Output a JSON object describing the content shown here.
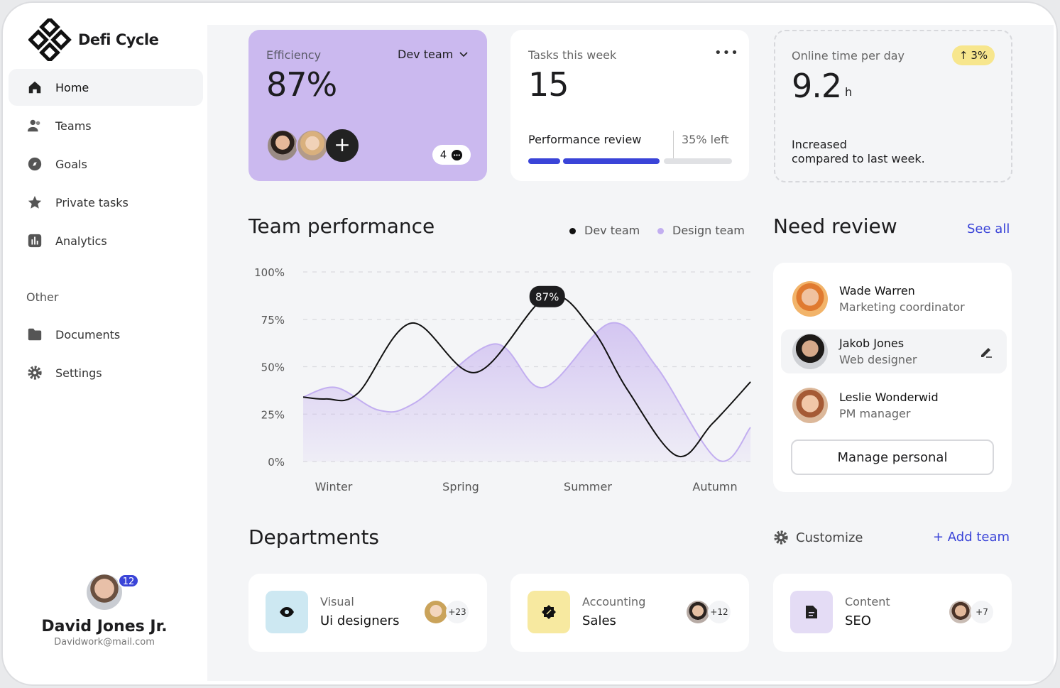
{
  "app": {
    "name": "Defi Cycle"
  },
  "sidebar": {
    "items": [
      {
        "label": "Home",
        "icon": "home-icon",
        "active": true
      },
      {
        "label": "Teams",
        "icon": "users-icon"
      },
      {
        "label": "Goals",
        "icon": "compass-icon"
      },
      {
        "label": "Private tasks",
        "icon": "star-icon"
      },
      {
        "label": "Analytics",
        "icon": "bar-chart-icon"
      }
    ],
    "other_label": "Other",
    "other_items": [
      {
        "label": "Documents",
        "icon": "folder-icon"
      },
      {
        "label": "Settings",
        "icon": "gear-icon"
      }
    ],
    "user": {
      "name": "David Jones Jr.",
      "email": "Davidwork@mail.com",
      "notifications": "12"
    }
  },
  "efficiency": {
    "label": "Efficiency",
    "value": "87%",
    "team": "Dev team",
    "comments": "4",
    "accent": "#cbb9ef"
  },
  "tasks": {
    "label": "Tasks this week",
    "value": "15",
    "progress_label": "Performance review",
    "left": "35% left",
    "progress": 65,
    "bar_color": "#3a44d8"
  },
  "online": {
    "label": "Online time per day",
    "value": "9.2",
    "unit": "h",
    "change": "3%",
    "note_line1": "Increased",
    "note_line2": "compared to last week."
  },
  "performance": {
    "title": "Team performance",
    "legend": [
      {
        "name": "Dev team",
        "color": "#111111"
      },
      {
        "name": "Design team",
        "color": "#c2aef0"
      }
    ]
  },
  "chart_data": {
    "type": "line",
    "categories": [
      "Winter",
      "Spring",
      "Summer",
      "Autumn"
    ],
    "y_ticks": [
      "100%",
      "75%",
      "50%",
      "25%",
      "0%"
    ],
    "ylim": [
      0,
      100
    ],
    "grid": true,
    "legend": "top-right",
    "highlight": {
      "series": "Dev team",
      "label": "87%",
      "value": 87
    },
    "series": [
      {
        "name": "Dev team",
        "type": "line",
        "color": "#111111",
        "points": [
          [
            -0.24,
            34
          ],
          [
            -0.06,
            33
          ],
          [
            0.19,
            36
          ],
          [
            0.61,
            73
          ],
          [
            1.12,
            47
          ],
          [
            1.68,
            87
          ],
          [
            2.03,
            70
          ],
          [
            2.31,
            38
          ],
          [
            2.7,
            3
          ],
          [
            2.98,
            20
          ],
          [
            3.28,
            42
          ]
        ]
      },
      {
        "name": "Design team",
        "type": "area",
        "color": "#c2aef0",
        "points": [
          [
            -0.24,
            34
          ],
          [
            0.02,
            39
          ],
          [
            0.36,
            27
          ],
          [
            0.64,
            31
          ],
          [
            1.26,
            62
          ],
          [
            1.65,
            39
          ],
          [
            2.18,
            73
          ],
          [
            2.54,
            50
          ],
          [
            3.02,
            1
          ],
          [
            3.28,
            18
          ]
        ]
      }
    ]
  },
  "review": {
    "title": "Need review",
    "see_all": "See all",
    "people": [
      {
        "name": "Wade Warren",
        "role": "Marketing coordinator",
        "color": "#e08a3a"
      },
      {
        "name": "Jakob Jones",
        "role": "Web designer",
        "color": "#6b5a4e"
      },
      {
        "name": "Leslie Wonderwid",
        "role": "PM manager",
        "color": "#b07a5a"
      }
    ],
    "button": "Manage personal"
  },
  "departments": {
    "title": "Departments",
    "customize": "Customize",
    "add": "+ Add team",
    "items": [
      {
        "category": "Visual",
        "name": "Ui designers",
        "count": "+23",
        "color": "#cde8f2",
        "icon": "eye-icon"
      },
      {
        "category": "Accounting",
        "name": "Sales",
        "count": "+12",
        "color": "#f7e9a0",
        "icon": "percent-badge-icon"
      },
      {
        "category": "Content",
        "name": "SEO",
        "count": "+7",
        "color": "#e4dcf5",
        "icon": "document-icon"
      }
    ]
  }
}
